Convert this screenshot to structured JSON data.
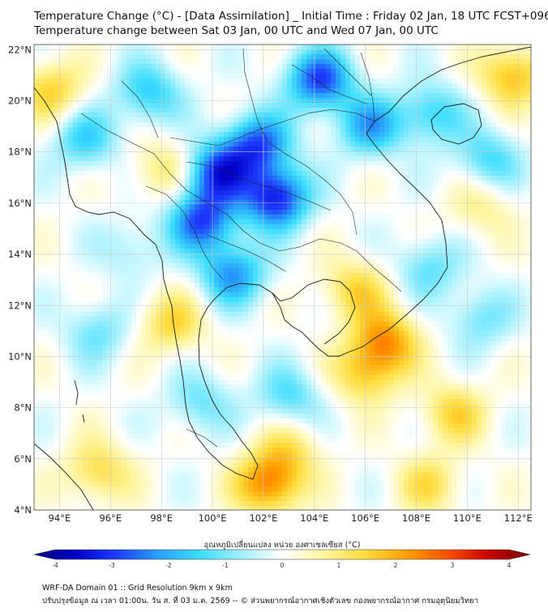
{
  "header": {
    "title": "Temperature Change (°C) - [Data Assimilation] _ Initial Time : Friday 02 Jan, 18 UTC FCST+096",
    "subtitle": "Temperature change between Sat 03 Jan, 00 UTC and Wed 07 Jan, 00 UTC"
  },
  "map": {
    "lat_labels": [
      "22°N",
      "20°N",
      "18°N",
      "16°N",
      "14°N",
      "12°N",
      "10°N",
      "8°N",
      "6°N",
      "4°N"
    ],
    "lon_labels": [
      "94°E",
      "96°E",
      "98°E",
      "100°E",
      "102°E",
      "104°E",
      "106°E",
      "108°E",
      "110°E",
      "112°E"
    ],
    "lat_values": [
      22,
      20,
      18,
      16,
      14,
      12,
      10,
      8,
      6,
      4
    ],
    "lon_values": [
      94,
      96,
      98,
      100,
      102,
      104,
      106,
      108,
      110,
      112
    ],
    "extent": {
      "lon_min": 93.0,
      "lon_max": 112.5,
      "lat_min": 4.0,
      "lat_max": 22.2
    },
    "anomalies": [
      {
        "lon": 102.5,
        "lat": 16.2,
        "value": -3.0
      },
      {
        "lon": 100.2,
        "lat": 17.2,
        "value": -2.6
      },
      {
        "lon": 104.2,
        "lat": 20.8,
        "value": -2.6
      },
      {
        "lon": 99.6,
        "lat": 15.3,
        "value": -2.5
      },
      {
        "lon": 101.8,
        "lat": 18.3,
        "value": -2.4
      },
      {
        "lon": 100.8,
        "lat": 13.2,
        "value": -2.0
      },
      {
        "lon": 106.2,
        "lat": 19.0,
        "value": -1.8
      },
      {
        "lon": 97.5,
        "lat": 20.3,
        "value": -1.5
      },
      {
        "lon": 108.6,
        "lat": 19.5,
        "value": -1.4
      },
      {
        "lon": 110.8,
        "lat": 17.7,
        "value": -1.3
      },
      {
        "lon": 95.0,
        "lat": 18.5,
        "value": -1.4
      },
      {
        "lon": 103.0,
        "lat": 8.4,
        "value": -1.2
      },
      {
        "lon": 99.5,
        "lat": 8.2,
        "value": -1.0
      },
      {
        "lon": 95.5,
        "lat": 11.0,
        "value": -1.0
      },
      {
        "lon": 108.5,
        "lat": 13.5,
        "value": -1.1
      },
      {
        "lon": 110.5,
        "lat": 11.5,
        "value": -1.0
      },
      {
        "lon": 105.6,
        "lat": 12.6,
        "value": 1.3
      },
      {
        "lon": 106.8,
        "lat": 10.6,
        "value": 2.0
      },
      {
        "lon": 106.0,
        "lat": 9.3,
        "value": 1.4
      },
      {
        "lon": 102.2,
        "lat": 5.0,
        "value": 2.2
      },
      {
        "lon": 103.0,
        "lat": 6.3,
        "value": 1.0
      },
      {
        "lon": 95.5,
        "lat": 5.5,
        "value": 1.3
      },
      {
        "lon": 93.7,
        "lat": 20.4,
        "value": 1.4
      },
      {
        "lon": 98.1,
        "lat": 17.3,
        "value": 1.0
      },
      {
        "lon": 98.4,
        "lat": 11.3,
        "value": 1.3
      },
      {
        "lon": 111.8,
        "lat": 21.0,
        "value": 1.7
      },
      {
        "lon": 109.5,
        "lat": 7.8,
        "value": 1.3
      },
      {
        "lon": 108.5,
        "lat": 5.0,
        "value": 1.1
      },
      {
        "lon": 110.5,
        "lat": 15.8,
        "value": 0.8
      },
      {
        "lon": 96.8,
        "lat": 14.2,
        "value": -0.7
      }
    ]
  },
  "colorbar": {
    "label": "อุณหภูมิเปลี่ยนแปลง หน่วย องศาเซลเซียส (°C)",
    "min": -4,
    "max": 4,
    "ticks": [
      "-4",
      "-3",
      "-2",
      "-1",
      "0",
      "1",
      "2",
      "3",
      "4"
    ],
    "tick_values": [
      -4,
      -3,
      -2,
      -1,
      0,
      1,
      2,
      3,
      4
    ]
  },
  "footer": {
    "line1": "WRF-DA Domain 01 :: Grid Resolution 9km x 9km",
    "line2": "ปรับปรุงข้อมูล ณ เวลา 01:00น. วัน ส. ที่ 03 ม.ค. 2569 -- © ส่วนพยากรณ์อากาศเชิงตัวเลข กองพยากรณ์อากาศ กรมอุตุนิยมวิทยา"
  },
  "colors": {
    "ramp": [
      "#00007d",
      "#0000c8",
      "#1e3cff",
      "#28a0ff",
      "#3cdcff",
      "#a0f0ff",
      "#ffffff",
      "#fff5a0",
      "#ffdc3c",
      "#ffa000",
      "#ff5000",
      "#c80000",
      "#7d0000"
    ],
    "coast": "#1a1a1a",
    "grid": "#c8c8c8"
  }
}
